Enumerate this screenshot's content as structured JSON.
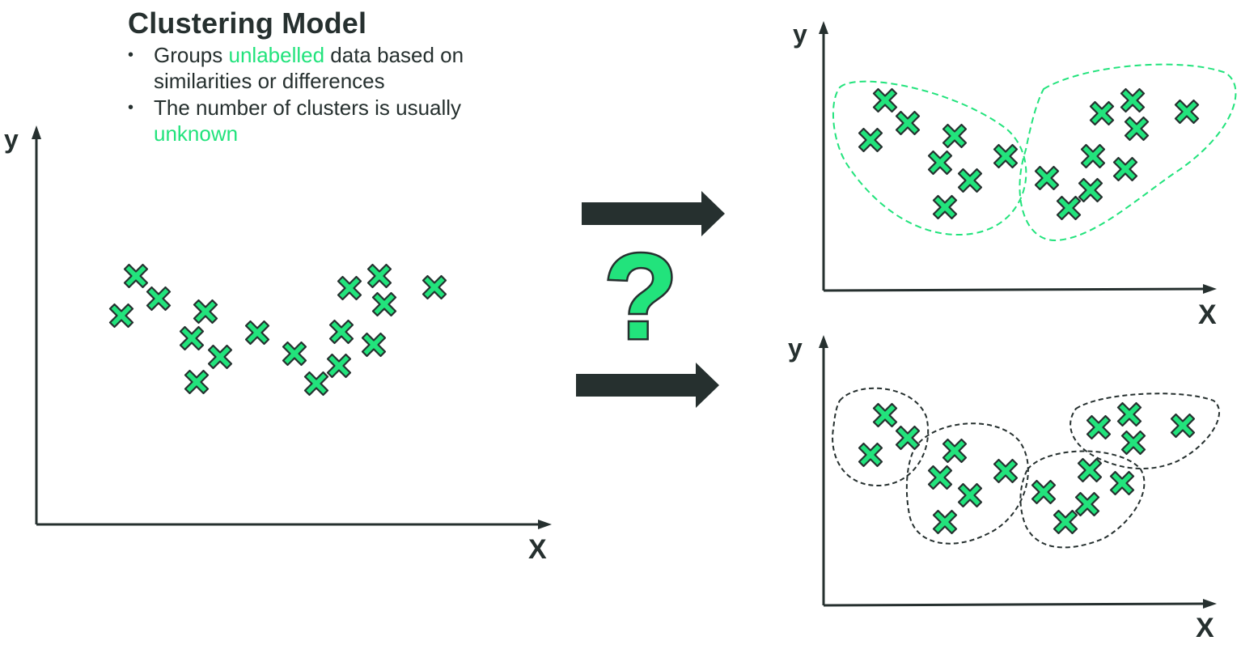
{
  "title": "Clustering Model",
  "bullets": [
    {
      "parts": [
        {
          "text": "Groups ",
          "accent": false
        },
        {
          "text": "unlabelled",
          "accent": true
        },
        {
          "text": " data based on similarities or differences",
          "accent": false
        }
      ]
    },
    {
      "parts": [
        {
          "text": "The number of clusters is usually ",
          "accent": false
        },
        {
          "text": "unknown",
          "accent": true
        }
      ]
    }
  ],
  "axes": {
    "x_label": "X",
    "y_label": "y"
  },
  "question_mark": "?",
  "colors": {
    "accent": "#22e37c",
    "dark": "#26302f",
    "marker_fill": "#22e37c",
    "marker_stroke": "#26302f"
  },
  "icons": {
    "marker": "cross-marker-icon",
    "arrow": "right-arrow-icon"
  },
  "clustering_outcomes": [
    {
      "clusters": 2,
      "outline_color": "#22e37c"
    },
    {
      "clusters": 4,
      "outline_color": "#26302f"
    }
  ]
}
